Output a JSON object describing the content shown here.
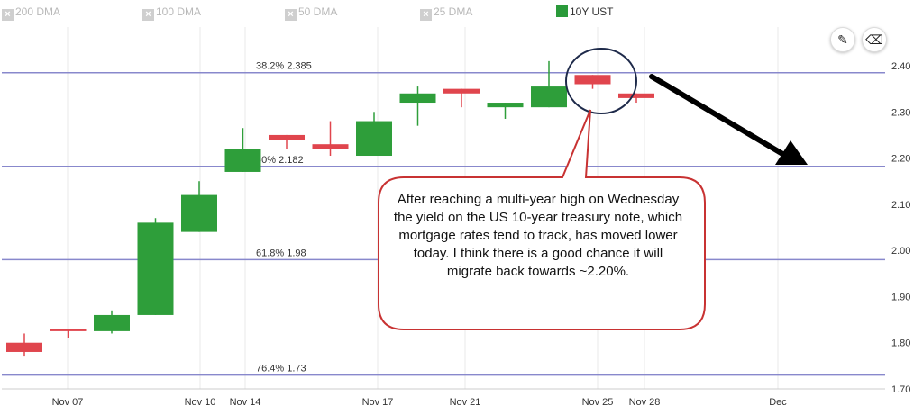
{
  "legend": [
    {
      "label": "200 DMA",
      "active": false
    },
    {
      "label": "100 DMA",
      "active": false
    },
    {
      "label": "50 DMA",
      "active": false
    },
    {
      "label": "25 DMA",
      "active": false
    },
    {
      "label": "10Y UST",
      "active": true
    }
  ],
  "tools": {
    "draw_icon": "pencil-icon",
    "erase_icon": "eraser-icon"
  },
  "colors": {
    "up": "#2e9e3a",
    "down": "#e0454d",
    "fib_line": "#8888cc",
    "annotation": "#c83232",
    "grid": "#e8e8e8"
  },
  "annotation": {
    "text": "After reaching a multi-year high on Wednesday the yield on the US 10-year treasury note, which mortgage rates tend to track, has moved lower today.  I think there is a good chance it will migrate back towards ~2.20%."
  },
  "chart_data": {
    "type": "candlestick",
    "title": "",
    "xlabel": "",
    "ylabel": "",
    "ylim": [
      1.7,
      2.44
    ],
    "y_ticks": [
      "1.70",
      "1.80",
      "1.90",
      "2.00",
      "2.10",
      "2.20",
      "2.30",
      "2.40"
    ],
    "x_ticks": [
      "Nov 07",
      "Nov 10",
      "Nov 14",
      "Nov 17",
      "Nov 21",
      "Nov 25",
      "Nov 28",
      "Dec"
    ],
    "grid": true,
    "series": [
      {
        "name": "10Y UST",
        "candles": [
          {
            "open": 1.8,
            "high": 1.82,
            "low": 1.77,
            "close": 1.78
          },
          {
            "open": 1.83,
            "high": 1.83,
            "low": 1.81,
            "close": 1.825
          },
          {
            "open": 1.825,
            "high": 1.87,
            "low": 1.82,
            "close": 1.86
          },
          {
            "open": 1.86,
            "high": 2.07,
            "low": 1.86,
            "close": 2.06
          },
          {
            "open": 2.04,
            "high": 2.15,
            "low": 2.04,
            "close": 2.12
          },
          {
            "open": 2.17,
            "high": 2.265,
            "low": 2.17,
            "close": 2.22
          },
          {
            "open": 2.25,
            "high": 2.25,
            "low": 2.22,
            "close": 2.24
          },
          {
            "open": 2.23,
            "high": 2.28,
            "low": 2.205,
            "close": 2.22
          },
          {
            "open": 2.205,
            "high": 2.3,
            "low": 2.205,
            "close": 2.28
          },
          {
            "open": 2.32,
            "high": 2.355,
            "low": 2.27,
            "close": 2.34
          },
          {
            "open": 2.35,
            "high": 2.35,
            "low": 2.31,
            "close": 2.34
          },
          {
            "open": 2.31,
            "high": 2.32,
            "low": 2.285,
            "close": 2.32
          },
          {
            "open": 2.31,
            "high": 2.41,
            "low": 2.31,
            "close": 2.355
          },
          {
            "open": 2.38,
            "high": 2.38,
            "low": 2.35,
            "close": 2.36
          },
          {
            "open": 2.34,
            "high": 2.34,
            "low": 2.32,
            "close": 2.33
          }
        ]
      }
    ],
    "fib_levels": [
      {
        "label": "38.2% 2.385",
        "value": 2.385
      },
      {
        "label": "50% 2.182",
        "value": 2.182
      },
      {
        "label": "61.8% 1.98",
        "value": 1.98
      },
      {
        "label": "76.4% 1.73",
        "value": 1.73
      }
    ],
    "annotations": [
      "circle around latest red candle",
      "arrow pointing to 2.20"
    ]
  }
}
